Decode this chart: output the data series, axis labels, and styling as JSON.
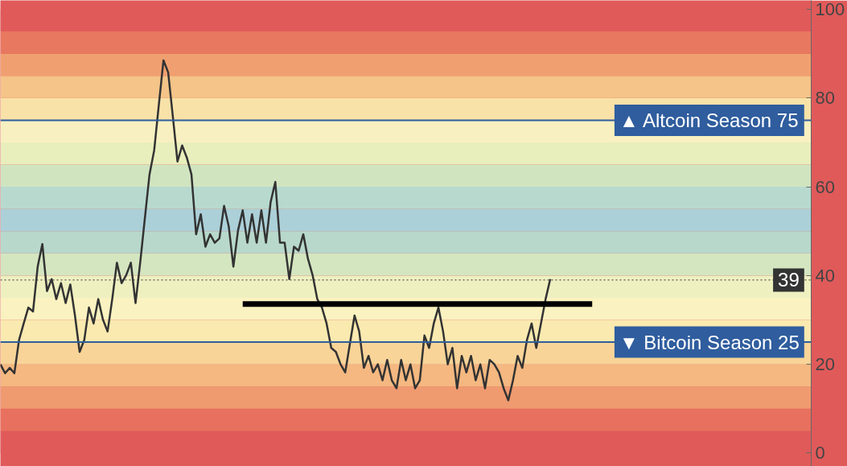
{
  "chart_data": {
    "type": "line",
    "categories": [
      null,
      null,
      null,
      null,
      null,
      null,
      null,
      null,
      null,
      null,
      null,
      null,
      null,
      null,
      null,
      null,
      null,
      null,
      null,
      null,
      null,
      null,
      null,
      null,
      null,
      null,
      null,
      null,
      null,
      null,
      null,
      null,
      null,
      null,
      null,
      null,
      null,
      null,
      null,
      null,
      null,
      null,
      null,
      null,
      null,
      null,
      null,
      null,
      null,
      null,
      null,
      null,
      null,
      null,
      null,
      null,
      null,
      null,
      null,
      null,
      null,
      null,
      null,
      null,
      null,
      null,
      null,
      null,
      null,
      null,
      null,
      null,
      null,
      null,
      null,
      null,
      null,
      null,
      null,
      null,
      null,
      null,
      null,
      null,
      null,
      null,
      null,
      null,
      null,
      null,
      null,
      null,
      null,
      null,
      null,
      null,
      null,
      null,
      null,
      null,
      null,
      null,
      null,
      null,
      null,
      null,
      null,
      null,
      null,
      null,
      null,
      null,
      null,
      null,
      null,
      null,
      null,
      null,
      null,
      null,
      null,
      null,
      null,
      null,
      null,
      null,
      null,
      null,
      null,
      null,
      null,
      null,
      null,
      null,
      null,
      null,
      null,
      null,
      null,
      null,
      null,
      null,
      null,
      null,
      null,
      null,
      null,
      null,
      null,
      null,
      null,
      null,
      null,
      null,
      null,
      null,
      null,
      null,
      null,
      null,
      null,
      null,
      null,
      null,
      null,
      null,
      null,
      null,
      null,
      null,
      null,
      null,
      null,
      null,
      null
    ],
    "series": [
      {
        "color": "#333333",
        "values": [
          20,
          18,
          19.2,
          18,
          25.5,
          29.2,
          32.8,
          31.9,
          42,
          47.1,
          36.5,
          39.2,
          34.7,
          38.3,
          33.8,
          38,
          31,
          22.8,
          25.5,
          32.8,
          29.2,
          34.7,
          30.1,
          27.4,
          34.7,
          42.9,
          38.3,
          40.1,
          42.9,
          33.8,
          42.9,
          52.9,
          62.8,
          68.2,
          78.5,
          88.5,
          85.8,
          75.9,
          65.7,
          69.3,
          66.6,
          62.8,
          49.3,
          53.8,
          46.5,
          49.3,
          47.4,
          48.4,
          55.7,
          51.1,
          42,
          50.2,
          54.7,
          47.4,
          53.8,
          47.4,
          54.7,
          47.4,
          56.6,
          61.1,
          47.4,
          47.4,
          39.2,
          46.5,
          45.6,
          49.3,
          43.8,
          40.1,
          34.7,
          32.8,
          29.2,
          23.7,
          22.8,
          20,
          18.2,
          24.6,
          31,
          27.4,
          19.2,
          21.9,
          18.2,
          20,
          16.4,
          21,
          16.4,
          14.6,
          21,
          16.4,
          20,
          14.6,
          16.4,
          26.5,
          23.7,
          29.2,
          32.8,
          27.4,
          20,
          23.7,
          14.6,
          21.9,
          18.2,
          21.9,
          16.4,
          20,
          14.6,
          21,
          20,
          18.2,
          14.6,
          11.9,
          16.4,
          21.9,
          19.2,
          25.5,
          29.2,
          23.7,
          29.2,
          34.7,
          39.2,
          null,
          null,
          null,
          null,
          null,
          null,
          null,
          null,
          null,
          null,
          null,
          null,
          null,
          null,
          null,
          null,
          null,
          null,
          null,
          null,
          null,
          null,
          null,
          null,
          null,
          null,
          null,
          null,
          null,
          null,
          null,
          null,
          null,
          null,
          null,
          null,
          null,
          null,
          null,
          null,
          null,
          null,
          null,
          null,
          null,
          null,
          null,
          null,
          null,
          null,
          null,
          null,
          null,
          null,
          null,
          null
        ]
      },
      {
        "color": "#000000",
        "values": [
          null,
          null,
          null,
          null,
          null,
          null,
          null,
          null,
          null,
          null,
          null,
          null,
          null,
          null,
          null,
          null,
          null,
          null,
          null,
          null,
          null,
          null,
          null,
          null,
          null,
          null,
          null,
          null,
          null,
          null,
          null,
          null,
          null,
          null,
          null,
          null,
          null,
          null,
          null,
          null,
          null,
          null,
          null,
          null,
          null,
          null,
          null,
          null,
          null,
          null,
          null,
          null,
          33.6,
          33.6,
          33.6,
          33.6,
          33.6,
          33.6,
          33.6,
          33.6,
          33.6,
          33.6,
          33.6,
          33.6,
          33.6,
          33.6,
          33.6,
          33.6,
          33.6,
          33.6,
          33.6,
          33.6,
          33.6,
          33.6,
          33.6,
          33.6,
          33.6,
          33.6,
          33.6,
          33.6,
          33.6,
          33.6,
          33.6,
          33.6,
          33.6,
          33.6,
          33.6,
          33.6,
          33.6,
          33.6,
          33.6,
          33.6,
          33.6,
          33.6,
          33.6,
          33.6,
          33.6,
          33.6,
          33.6,
          33.6,
          33.6,
          33.6,
          33.6,
          33.6,
          33.6,
          33.6,
          33.6,
          33.6,
          33.6,
          33.6,
          33.6,
          33.6,
          33.6,
          33.6,
          33.6,
          33.6,
          33.6,
          33.6,
          33.6,
          33.6,
          33.6,
          33.6,
          33.6,
          33.6,
          33.6,
          33.6,
          33.6,
          33.6,
          null,
          null,
          null,
          null,
          null,
          null,
          null,
          null,
          null,
          null,
          null,
          null,
          null,
          null,
          null,
          null,
          null,
          null,
          null,
          null,
          null,
          null,
          null,
          null,
          null,
          null,
          null,
          null,
          null,
          null,
          null,
          null,
          null,
          null,
          null,
          null,
          null,
          null,
          null,
          null,
          null,
          null,
          null,
          null,
          null,
          null,
          null
        ]
      }
    ],
    "ylim": [
      -3,
      102
    ],
    "yticks": [
      0,
      20,
      40,
      60,
      80,
      100
    ],
    "tick_labels": "y",
    "grid": false,
    "ref_lines": [
      {
        "axis": "y",
        "value": 75,
        "label": "▲ Altcoin Season 75",
        "color": "#2f5d9e",
        "line_style": "solid"
      },
      {
        "axis": "y",
        "value": 25,
        "label": "▼ Bitcoin Season 25",
        "color": "#2f5d9e",
        "line_style": "solid"
      },
      {
        "axis": "y",
        "value": 39,
        "label": "39",
        "color": "#333333",
        "line_style": "dotted"
      }
    ],
    "bands": [
      {
        "axis": "y",
        "from": 0,
        "to": 5,
        "color": "#e05a5a"
      },
      {
        "axis": "y",
        "from": 5,
        "to": 10,
        "color": "#e8705e"
      },
      {
        "axis": "y",
        "from": 10,
        "to": 15,
        "color": "#f09a70"
      },
      {
        "axis": "y",
        "from": 15,
        "to": 20,
        "color": "#f4b880"
      },
      {
        "axis": "y",
        "from": 20,
        "to": 25,
        "color": "#f8d498"
      },
      {
        "axis": "y",
        "from": 25,
        "to": 30,
        "color": "#faeab0"
      },
      {
        "axis": "y",
        "from": 30,
        "to": 35,
        "color": "#faf2c0"
      },
      {
        "axis": "y",
        "from": 35,
        "to": 40,
        "color": "#eef0c0"
      },
      {
        "axis": "y",
        "from": 40,
        "to": 45,
        "color": "#d4e6c0"
      },
      {
        "axis": "y",
        "from": 45,
        "to": 50,
        "color": "#b8d8cc"
      },
      {
        "axis": "y",
        "from": 50,
        "to": 55,
        "color": "#acd0d8"
      },
      {
        "axis": "y",
        "from": 55,
        "to": 60,
        "color": "#b8dace"
      },
      {
        "axis": "y",
        "from": 60,
        "to": 65,
        "color": "#d0e4c0"
      },
      {
        "axis": "y",
        "from": 65,
        "to": 70,
        "color": "#e8eebc"
      },
      {
        "axis": "y",
        "from": 70,
        "to": 75,
        "color": "#f8f0c0"
      },
      {
        "axis": "y",
        "from": 75,
        "to": 80,
        "color": "#f8e2a8"
      },
      {
        "axis": "y",
        "from": 80,
        "to": 85,
        "color": "#f4c488"
      },
      {
        "axis": "y",
        "from": 85,
        "to": 90,
        "color": "#f0a070"
      },
      {
        "axis": "y",
        "from": 90,
        "to": 95,
        "color": "#e87860"
      },
      {
        "axis": "y",
        "from": 95,
        "to": 100,
        "color": "#e05a5a"
      }
    ]
  }
}
